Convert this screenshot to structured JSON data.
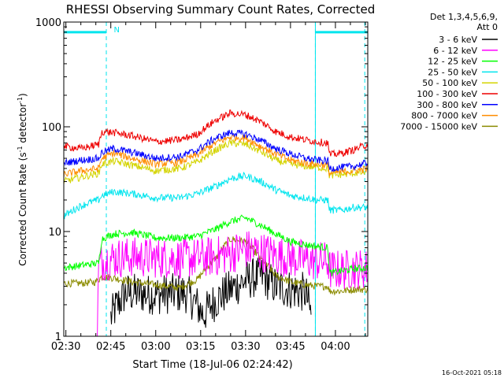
{
  "chart_data": {
    "type": "line",
    "title": "RHESSI Observing Summary Count Rates, Corrected",
    "xlabel": "Start Time (18-Jul-06 02:24:42)",
    "ylabel_main": "Corrected Count Rate (s",
    "ylabel_sup1": "-1",
    "ylabel_mid": " detector",
    "ylabel_sup2": "-1",
    "ylabel_end": ")",
    "yscale": "log",
    "ylim": [
      1,
      1000
    ],
    "xlim_minutes": [
      -0.7,
      100.8
    ],
    "x_ticks": [
      {
        "m": 0,
        "label": "02:30"
      },
      {
        "m": 15,
        "label": "02:45"
      },
      {
        "m": 30,
        "label": "03:00"
      },
      {
        "m": 45,
        "label": "03:15"
      },
      {
        "m": 60,
        "label": "03:30"
      },
      {
        "m": 75,
        "label": "03:45"
      },
      {
        "m": 90,
        "label": "04:00"
      }
    ],
    "y_ticks": [
      {
        "v": 1,
        "label": "1"
      },
      {
        "v": 10,
        "label": "10"
      },
      {
        "v": 100,
        "label": "100"
      },
      {
        "v": 1000,
        "label": "1000"
      }
    ],
    "legend": {
      "placement": "right",
      "header1": "Det 1,3,4,5,6,9,",
      "header2": "Att 0",
      "entries": [
        {
          "name": "3 - 6 keV",
          "color": "#000000"
        },
        {
          "name": "6 - 12 keV",
          "color": "#ff00ff"
        },
        {
          "name": "12 - 25 keV",
          "color": "#00ff00"
        },
        {
          "name": "25 - 50 keV",
          "color": "#00e5ee"
        },
        {
          "name": "50 - 100 keV",
          "color": "#d4d400"
        },
        {
          "name": "100 - 300 keV",
          "color": "#ee0000"
        },
        {
          "name": "300 - 800 keV",
          "color": "#0000ff"
        },
        {
          "name": "800 - 7000 keV",
          "color": "#ff8c00"
        },
        {
          "name": "7000 - 15000 keV",
          "color": "#8b8b00"
        }
      ]
    },
    "annotations": [
      {
        "text": "N",
        "x_minutes": 16
      }
    ],
    "markers": {
      "night_color": "#00e5ee",
      "night_intervals": [
        [
          -0.7,
          13.5
        ],
        [
          83.3,
          100.8
        ]
      ],
      "night_level": 800,
      "dashed_x": [
        13.5,
        83.3,
        99.8
      ],
      "solid_x": [
        83.3
      ]
    },
    "series": [
      {
        "name": "100 - 300 keV",
        "color": "#ee0000",
        "x": [
          -0.7,
          5,
          11,
          12,
          16,
          22,
          30,
          38,
          44,
          50,
          55,
          60,
          65,
          70,
          75,
          80,
          84,
          87.5,
          88,
          92,
          96,
          100.8
        ],
        "y": [
          65,
          62,
          68,
          90,
          88,
          82,
          72,
          75,
          85,
          115,
          135,
          130,
          112,
          90,
          80,
          75,
          72,
          70,
          54,
          56,
          60,
          68
        ]
      },
      {
        "name": "300 - 800 keV",
        "color": "#0000ff",
        "x": [
          -0.7,
          5,
          11,
          12,
          16,
          22,
          30,
          38,
          44,
          50,
          55,
          60,
          65,
          70,
          75,
          80,
          84,
          87.5,
          88,
          92,
          96,
          100.8
        ],
        "y": [
          45,
          48,
          50,
          57,
          62,
          57,
          50,
          52,
          60,
          78,
          88,
          85,
          74,
          62,
          55,
          50,
          48,
          47,
          40,
          41,
          42,
          45
        ]
      },
      {
        "name": "800 - 7000 keV",
        "color": "#ff8c00",
        "x": [
          -0.7,
          5,
          11,
          12,
          16,
          22,
          30,
          38,
          44,
          50,
          55,
          60,
          65,
          70,
          75,
          80,
          84,
          87.5,
          88,
          92,
          96,
          100.8
        ],
        "y": [
          35,
          38,
          40,
          50,
          56,
          50,
          44,
          46,
          54,
          70,
          80,
          78,
          65,
          55,
          48,
          45,
          44,
          43,
          36,
          37,
          38,
          40
        ]
      },
      {
        "name": "50 - 100 keV",
        "color": "#d4d400",
        "x": [
          -0.7,
          5,
          11,
          12,
          16,
          22,
          30,
          38,
          44,
          50,
          55,
          60,
          65,
          70,
          75,
          80,
          84,
          87.5,
          88,
          92,
          96,
          100.8
        ],
        "y": [
          30,
          33,
          36,
          44,
          47,
          43,
          38,
          40,
          46,
          60,
          70,
          68,
          58,
          48,
          44,
          42,
          41,
          40,
          34,
          35,
          36,
          37
        ]
      },
      {
        "name": "25 - 50 keV",
        "color": "#00e5ee",
        "x": [
          -0.7,
          4,
          8,
          11,
          12,
          16,
          22,
          30,
          38,
          44,
          50,
          55,
          60,
          65,
          70,
          75,
          80,
          84,
          87.5,
          88,
          92,
          96,
          100.8
        ],
        "y": [
          14,
          17,
          19,
          20,
          22,
          24,
          23,
          21,
          21,
          23,
          27,
          32,
          34,
          30,
          25,
          22,
          21,
          20,
          20,
          16,
          16,
          17,
          17
        ]
      },
      {
        "name": "12 - 25 keV",
        "color": "#00ff00",
        "x": [
          -0.7,
          4,
          11,
          12,
          16,
          22,
          30,
          38,
          44,
          50,
          55,
          60,
          65,
          70,
          75,
          80,
          84,
          87.5,
          88,
          92,
          96,
          100.8
        ],
        "y": [
          4.5,
          4.7,
          5,
          8.5,
          9.5,
          9.8,
          8.7,
          8.7,
          9,
          10.5,
          12.5,
          13.5,
          11.5,
          9.5,
          8,
          7.5,
          7.2,
          7,
          4,
          4.2,
          4.4,
          4.5
        ]
      },
      {
        "name": "6 - 12 keV",
        "color": "#ff00ff",
        "x": [
          10.5,
          11,
          12,
          16,
          22,
          30,
          38,
          44,
          50,
          55,
          60,
          65,
          70,
          75,
          80,
          84,
          87.5,
          88,
          92,
          96,
          100.8
        ],
        "y": [
          1,
          4.5,
          5.2,
          5.6,
          5.7,
          5.6,
          5.5,
          5.6,
          5.8,
          6.2,
          6.8,
          6.4,
          6,
          5.6,
          5.4,
          5.2,
          5.2,
          4.3,
          4.3,
          4.4,
          4.4
        ]
      },
      {
        "name": "7000 - 15000 keV",
        "color": "#8b8b00",
        "x": [
          -0.7,
          5,
          10,
          12,
          16,
          22,
          30,
          38,
          44,
          50,
          55,
          60,
          65,
          70,
          75,
          80,
          84,
          87.5,
          88,
          92,
          96,
          100.8
        ],
        "y": [
          3.2,
          3.2,
          3.3,
          3.7,
          3.6,
          3.3,
          3.1,
          2.9,
          3.5,
          5.5,
          8.5,
          8,
          5.5,
          3.8,
          3.3,
          3.1,
          3.0,
          3.0,
          2.7,
          2.7,
          2.8,
          2.8
        ]
      },
      {
        "name": "3 - 6 keV",
        "color": "#000000",
        "x": [
          15,
          20,
          30,
          40,
          46,
          50,
          55,
          60,
          65,
          70,
          75,
          80,
          82
        ],
        "y": [
          1.5,
          2.6,
          2.5,
          2.6,
          1.6,
          2.2,
          2.8,
          3.4,
          3.8,
          3.0,
          2.8,
          2.6,
          1.5
        ]
      }
    ]
  },
  "footer": {
    "timestamp": "16-Oct-2021 05:18"
  }
}
